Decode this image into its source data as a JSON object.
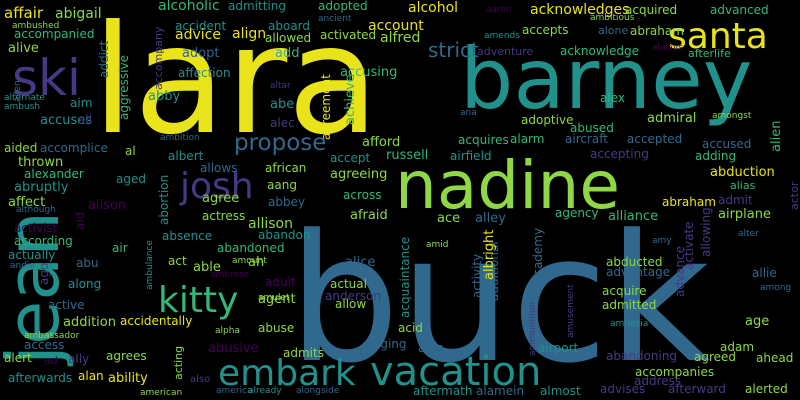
{
  "colors": {
    "background": "#000000",
    "yellow": "#e8e419",
    "lime": "#8fd744",
    "green": "#35b779",
    "teal": "#21918c",
    "steel": "#31688e",
    "blue": "#443a83",
    "purple": "#440154"
  },
  "words": [
    {
      "text": "buck",
      "color": "steel"
    },
    {
      "text": "lara",
      "color": "yellow"
    },
    {
      "text": "barney",
      "color": "teal"
    },
    {
      "text": "nadine",
      "color": "lime"
    },
    {
      "text": "jean",
      "color": "teal"
    },
    {
      "text": "santa",
      "color": "yellow"
    },
    {
      "text": "ski",
      "color": "blue"
    },
    {
      "text": "vacation",
      "color": "teal"
    },
    {
      "text": "embark",
      "color": "teal"
    },
    {
      "text": "kitty",
      "color": "green"
    },
    {
      "text": "josh",
      "color": "blue"
    },
    {
      "text": "propose",
      "color": "steel"
    },
    {
      "text": "strict",
      "color": "steel"
    },
    {
      "text": "alcohol",
      "color": "yellow"
    },
    {
      "text": "affair",
      "color": "yellow"
    },
    {
      "text": "abigail",
      "color": "lime"
    },
    {
      "text": "alcoholic",
      "color": "green"
    },
    {
      "text": "admitting",
      "color": "teal"
    },
    {
      "text": "adopted",
      "color": "green"
    },
    {
      "text": "account",
      "color": "yellow"
    },
    {
      "text": "acknowledges",
      "color": "yellow"
    },
    {
      "text": "acquired",
      "color": "lime"
    },
    {
      "text": "advanced",
      "color": "green"
    },
    {
      "text": "accident",
      "color": "teal"
    },
    {
      "text": "aboard",
      "color": "teal"
    },
    {
      "text": "accepts",
      "color": "lime"
    },
    {
      "text": "alone",
      "color": "steel"
    },
    {
      "text": "abraham",
      "color": "lime"
    },
    {
      "text": "accompanied",
      "color": "green"
    },
    {
      "text": "advice",
      "color": "yellow"
    },
    {
      "text": "align",
      "color": "yellow"
    },
    {
      "text": "allowed",
      "color": "lime"
    },
    {
      "text": "activated",
      "color": "lime"
    },
    {
      "text": "alfred",
      "color": "lime"
    },
    {
      "text": "alive",
      "color": "lime"
    },
    {
      "text": "addict",
      "color": "steel"
    },
    {
      "text": "accompany",
      "color": "blue"
    },
    {
      "text": "adopt",
      "color": "steel"
    },
    {
      "text": "add",
      "color": "green"
    },
    {
      "text": "adventure",
      "color": "blue"
    },
    {
      "text": "acknowledge",
      "color": "green"
    },
    {
      "text": "afterlife",
      "color": "green"
    },
    {
      "text": "affection",
      "color": "teal"
    },
    {
      "text": "accusing",
      "color": "green"
    },
    {
      "text": "aggressive",
      "color": "green"
    },
    {
      "text": "abby",
      "color": "teal"
    },
    {
      "text": "abe",
      "color": "teal"
    },
    {
      "text": "alex",
      "color": "green"
    },
    {
      "text": "adoptive",
      "color": "lime"
    },
    {
      "text": "admiral",
      "color": "lime"
    },
    {
      "text": "abused",
      "color": "green"
    },
    {
      "text": "aim",
      "color": "teal"
    },
    {
      "text": "accuses",
      "color": "teal"
    },
    {
      "text": "all",
      "color": "blue"
    },
    {
      "text": "alec",
      "color": "blue"
    },
    {
      "text": "agreement",
      "color": "yellow"
    },
    {
      "text": "achieve",
      "color": "green"
    },
    {
      "text": "acquires",
      "color": "green"
    },
    {
      "text": "alarm",
      "color": "green"
    },
    {
      "text": "aircraft",
      "color": "steel"
    },
    {
      "text": "accepted",
      "color": "steel"
    },
    {
      "text": "accused",
      "color": "steel"
    },
    {
      "text": "alien",
      "color": "green"
    },
    {
      "text": "aided",
      "color": "lime"
    },
    {
      "text": "accomplice",
      "color": "steel"
    },
    {
      "text": "al",
      "color": "lime"
    },
    {
      "text": "albert",
      "color": "teal"
    },
    {
      "text": "afford",
      "color": "lime"
    },
    {
      "text": "russell",
      "color": "green"
    },
    {
      "text": "airfield",
      "color": "teal"
    },
    {
      "text": "accepting",
      "color": "blue"
    },
    {
      "text": "adding",
      "color": "green"
    },
    {
      "text": "thrown",
      "color": "lime"
    },
    {
      "text": "accept",
      "color": "teal"
    },
    {
      "text": "allows",
      "color": "steel"
    },
    {
      "text": "african",
      "color": "lime"
    },
    {
      "text": "abduction",
      "color": "yellow"
    },
    {
      "text": "alias",
      "color": "green"
    },
    {
      "text": "alexander",
      "color": "green"
    },
    {
      "text": "aged",
      "color": "teal"
    },
    {
      "text": "aang",
      "color": "lime"
    },
    {
      "text": "agreeing",
      "color": "lime"
    },
    {
      "text": "abortion",
      "color": "teal"
    },
    {
      "text": "abruptly",
      "color": "teal"
    },
    {
      "text": "affect",
      "color": "lime"
    },
    {
      "text": "agree",
      "color": "lime"
    },
    {
      "text": "abbey",
      "color": "steel"
    },
    {
      "text": "across",
      "color": "green"
    },
    {
      "text": "abraham",
      "color": "yellow"
    },
    {
      "text": "admit",
      "color": "blue"
    },
    {
      "text": "airplane",
      "color": "lime"
    },
    {
      "text": "actor",
      "color": "blue"
    },
    {
      "text": "alison",
      "color": "purple"
    },
    {
      "text": "actress",
      "color": "lime"
    },
    {
      "text": "allison",
      "color": "lime"
    },
    {
      "text": "aid",
      "color": "purple"
    },
    {
      "text": "activist",
      "color": "purple"
    },
    {
      "text": "absence",
      "color": "teal"
    },
    {
      "text": "abandon",
      "color": "teal"
    },
    {
      "text": "afraid",
      "color": "lime"
    },
    {
      "text": "ace",
      "color": "lime"
    },
    {
      "text": "alley",
      "color": "steel"
    },
    {
      "text": "agency",
      "color": "green"
    },
    {
      "text": "alliance",
      "color": "green"
    },
    {
      "text": "according",
      "color": "green"
    },
    {
      "text": "abandoned",
      "color": "green"
    },
    {
      "text": "actually",
      "color": "teal"
    },
    {
      "text": "air",
      "color": "green"
    },
    {
      "text": "abu",
      "color": "steel"
    },
    {
      "text": "act",
      "color": "lime"
    },
    {
      "text": "able",
      "color": "lime"
    },
    {
      "text": "ah",
      "color": "lime"
    },
    {
      "text": "alice",
      "color": "steel"
    },
    {
      "text": "abducted",
      "color": "lime"
    },
    {
      "text": "advantage",
      "color": "steel"
    },
    {
      "text": "allie",
      "color": "steel"
    },
    {
      "text": "ago",
      "color": "blue"
    },
    {
      "text": "along",
      "color": "teal"
    },
    {
      "text": "adult",
      "color": "purple"
    },
    {
      "text": "actual",
      "color": "lime"
    },
    {
      "text": "anderson",
      "color": "blue"
    },
    {
      "text": "acquire",
      "color": "lime"
    },
    {
      "text": "admitted",
      "color": "lime"
    },
    {
      "text": "active",
      "color": "steel"
    },
    {
      "text": "agent",
      "color": "lime"
    },
    {
      "text": "allow",
      "color": "lime"
    },
    {
      "text": "activity",
      "color": "steel"
    },
    {
      "text": "additional",
      "color": "steel"
    },
    {
      "text": "albright",
      "color": "yellow"
    },
    {
      "text": "addition",
      "color": "lime"
    },
    {
      "text": "accidentally",
      "color": "yellow"
    },
    {
      "text": "acid",
      "color": "lime"
    },
    {
      "text": "age",
      "color": "lime"
    },
    {
      "text": "abuse",
      "color": "lime"
    },
    {
      "text": "aging",
      "color": "steel"
    },
    {
      "text": "aide",
      "color": "steel"
    },
    {
      "text": "airport",
      "color": "teal"
    },
    {
      "text": "adam",
      "color": "lime"
    },
    {
      "text": "ahead",
      "color": "lime"
    },
    {
      "text": "alert",
      "color": "lime"
    },
    {
      "text": "ally",
      "color": "blue"
    },
    {
      "text": "agrees",
      "color": "lime"
    },
    {
      "text": "abusive",
      "color": "purple"
    },
    {
      "text": "admits",
      "color": "lime"
    },
    {
      "text": "abandoning",
      "color": "blue"
    },
    {
      "text": "agreed",
      "color": "lime"
    },
    {
      "text": "afterwards",
      "color": "teal"
    },
    {
      "text": "alan",
      "color": "yellow"
    },
    {
      "text": "ability",
      "color": "yellow"
    },
    {
      "text": "aftermath",
      "color": "teal"
    },
    {
      "text": "alamein",
      "color": "steel"
    },
    {
      "text": "almost",
      "color": "teal"
    },
    {
      "text": "advises",
      "color": "blue"
    },
    {
      "text": "afterward",
      "color": "blue"
    },
    {
      "text": "alerted",
      "color": "lime"
    },
    {
      "text": "accompanies",
      "color": "lime"
    },
    {
      "text": "address",
      "color": "blue"
    },
    {
      "text": "access",
      "color": "steel"
    },
    {
      "text": "ad",
      "color": "purple"
    },
    {
      "text": "acting",
      "color": "lime"
    },
    {
      "text": "also",
      "color": "blue"
    },
    {
      "text": "american",
      "color": "lime"
    },
    {
      "text": "america",
      "color": "steel"
    },
    {
      "text": "already",
      "color": "teal"
    },
    {
      "text": "alongside",
      "color": "steel"
    },
    {
      "text": "advance",
      "color": "blue"
    },
    {
      "text": "activate",
      "color": "blue"
    },
    {
      "text": "allowing",
      "color": "blue"
    },
    {
      "text": "academy",
      "color": "steel"
    },
    {
      "text": "acquaintance",
      "color": "teal"
    },
    {
      "text": "alter",
      "color": "steel"
    },
    {
      "text": "amy",
      "color": "steel"
    },
    {
      "text": "amid",
      "color": "lime"
    },
    {
      "text": "among",
      "color": "steel"
    },
    {
      "text": "amnesia",
      "color": "teal"
    },
    {
      "text": "amusement",
      "color": "blue"
    },
    {
      "text": "ammunition",
      "color": "blue"
    },
    {
      "text": "amount",
      "color": "lime"
    },
    {
      "text": "amulet",
      "color": "lime"
    },
    {
      "text": "alpha",
      "color": "lime"
    },
    {
      "text": "ambrose",
      "color": "purple"
    },
    {
      "text": "ambulance",
      "color": "teal"
    },
    {
      "text": "although",
      "color": "steel"
    },
    {
      "text": "andie",
      "color": "steel"
    },
    {
      "text": "ambassador",
      "color": "lime"
    },
    {
      "text": "ambush",
      "color": "teal"
    },
    {
      "text": "alternate",
      "color": "teal"
    },
    {
      "text": "allen",
      "color": "steel"
    },
    {
      "text": "ambushed",
      "color": "lime"
    },
    {
      "text": "ancient",
      "color": "steel"
    },
    {
      "text": "aaron",
      "color": "purple"
    },
    {
      "text": "amends",
      "color": "teal"
    },
    {
      "text": "ambitious",
      "color": "lime"
    },
    {
      "text": "always",
      "color": "purple"
    },
    {
      "text": "ambition",
      "color": "steel"
    },
    {
      "text": "altar",
      "color": "blue"
    },
    {
      "text": "amongst",
      "color": "lime"
    },
    {
      "text": "ana",
      "color": "steel"
    }
  ]
}
